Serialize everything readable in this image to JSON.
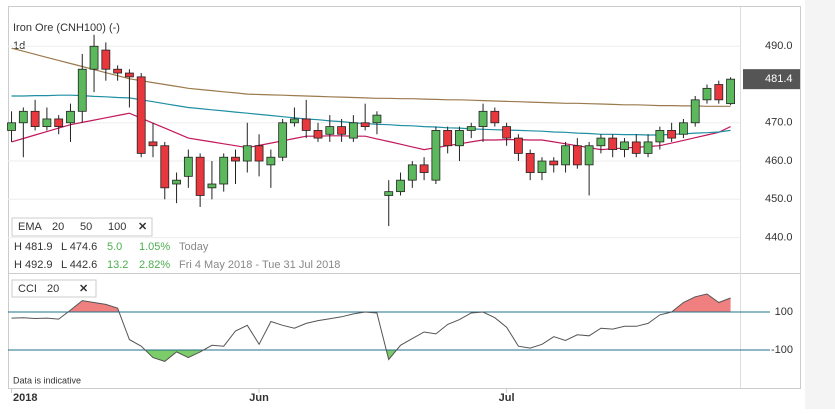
{
  "chart_data": {
    "type": "candlestick",
    "title": "Iron Ore (CNH100) (-)",
    "interval": "1d",
    "xlim": [
      -0.3,
      61.8
    ],
    "xticks": [
      {
        "value": 0,
        "label": "2018"
      },
      {
        "value": 21,
        "label": "Jun"
      },
      {
        "value": 42,
        "label": "Jul"
      }
    ],
    "ylim": [
      431,
      500
    ],
    "yticks": [
      {
        "value": 440,
        "label": "440.0"
      },
      {
        "value": 450,
        "label": "450.0"
      },
      {
        "value": 460,
        "label": "460.0"
      },
      {
        "value": 470,
        "label": "470.0"
      },
      {
        "value": 490,
        "label": "490.0"
      }
    ],
    "grid": true,
    "up_color": "#5cb85c",
    "down_color": "#e8383d",
    "ohlc": {
      "open": [
        468,
        470,
        473,
        469,
        471,
        470,
        473,
        484,
        489,
        484,
        483,
        482,
        465,
        464,
        454,
        456,
        461,
        453,
        454,
        461,
        460,
        464,
        459,
        461,
        470,
        471,
        468,
        467,
        469,
        466,
        470,
        470,
        451,
        452,
        455,
        459,
        455,
        468,
        464,
        468,
        469,
        473,
        469,
        466,
        462,
        457,
        460,
        459,
        464,
        459,
        464,
        466,
        463,
        465,
        462,
        465,
        468,
        467,
        470,
        476,
        480,
        475
      ],
      "high": [
        473,
        474,
        476,
        474,
        472,
        475,
        488,
        493,
        491,
        485,
        484,
        483,
        470,
        465,
        457,
        463,
        462,
        460,
        462,
        463,
        470,
        467,
        463,
        471,
        474,
        476,
        470,
        472,
        471,
        472,
        475,
        473,
        455,
        457,
        460,
        461,
        469,
        469,
        469,
        470,
        475,
        474,
        470,
        467,
        463,
        461,
        461,
        465,
        466,
        465,
        467,
        467,
        466,
        467,
        467,
        469,
        470,
        471,
        477,
        480,
        481,
        481.9
      ],
      "low": [
        465,
        461,
        468,
        468,
        467,
        465,
        470,
        478,
        481,
        481,
        474,
        461,
        461,
        450,
        449,
        453,
        448,
        450,
        452,
        454,
        457,
        456,
        453,
        460,
        469,
        466,
        465,
        465,
        465,
        465,
        468,
        467,
        443,
        451,
        453,
        455,
        454,
        462,
        460,
        466,
        465,
        469,
        464,
        460,
        455,
        455,
        457,
        457,
        458,
        451,
        462,
        461,
        461,
        461,
        461,
        463,
        465,
        466,
        469,
        475,
        475,
        474.6
      ],
      "close": [
        470,
        473,
        469,
        471,
        469,
        473,
        484,
        490,
        484,
        483,
        482,
        462,
        464,
        453,
        455,
        461,
        451,
        454,
        461,
        460,
        464,
        460,
        461,
        470,
        471,
        468,
        466,
        469,
        467,
        470,
        469,
        472,
        452,
        455,
        459,
        457,
        468,
        464,
        468,
        469,
        473,
        470,
        466,
        462,
        457,
        460,
        459,
        464,
        459,
        464,
        466,
        463,
        465,
        462,
        465,
        468,
        466,
        470,
        476,
        479,
        476,
        481.4
      ]
    },
    "last_label": "481.4",
    "series": [
      {
        "name": "20",
        "color": "#c2185b",
        "values": [
          465,
          465.9,
          466.8,
          467.7,
          468.6,
          469.5,
          470.1,
          470.7,
          471.3,
          471.9,
          472.5,
          471.2,
          469.9,
          468.6,
          467.3,
          466.0,
          465.5,
          465.0,
          464.5,
          464.0,
          463.5,
          464.1,
          464.7,
          465.3,
          465.9,
          466.5,
          466.5,
          466.6,
          466.6,
          466.5,
          466.5,
          465.8,
          465.1,
          464.4,
          463.7,
          463.0,
          463.5,
          464.0,
          464.5,
          465.0,
          465.5,
          465.5,
          465.6,
          465.6,
          465.5,
          465.5,
          465.0,
          464.5,
          464.0,
          463.5,
          463.0,
          463.2,
          463.4,
          463.6,
          463.8,
          464.0,
          464.7,
          465.4,
          466.1,
          466.8,
          467.5,
          469.0
        ]
      },
      {
        "name": "50",
        "color": "#1f8fa3",
        "values": [
          477,
          477.0,
          477.1,
          477.1,
          477.2,
          477.2,
          477.1,
          476.9,
          476.8,
          476.6,
          476.5,
          476.0,
          475.5,
          475.0,
          474.5,
          474.0,
          473.7,
          473.4,
          473.1,
          472.8,
          472.5,
          472.2,
          471.9,
          471.6,
          471.3,
          471.0,
          470.8,
          470.5,
          470.3,
          470.0,
          469.8,
          469.6,
          469.5,
          469.3,
          469.2,
          469.0,
          468.9,
          468.7,
          468.6,
          468.4,
          468.3,
          468.2,
          468.1,
          468.0,
          467.9,
          467.8,
          467.6,
          467.5,
          467.3,
          467.2,
          467.0,
          467.0,
          466.9,
          466.9,
          466.8,
          466.8,
          467.0,
          467.1,
          467.3,
          467.4,
          467.6,
          468.0
        ]
      },
      {
        "name": "100",
        "color": "#9c7a4e",
        "values": [
          489.5,
          488.7,
          487.9,
          487.1,
          486.3,
          485.5,
          484.7,
          483.9,
          483.1,
          482.3,
          481.5,
          481.0,
          480.5,
          480.0,
          479.5,
          479.0,
          478.7,
          478.4,
          478.1,
          477.8,
          477.5,
          477.4,
          477.3,
          477.2,
          477.1,
          477.0,
          476.9,
          476.8,
          476.7,
          476.6,
          476.5,
          476.4,
          476.4,
          476.3,
          476.3,
          476.2,
          476.1,
          476.0,
          476.0,
          475.9,
          475.8,
          475.7,
          475.6,
          475.5,
          475.4,
          475.3,
          475.2,
          475.1,
          475.1,
          475.0,
          474.9,
          474.8,
          474.7,
          474.7,
          474.6,
          474.5,
          474.5,
          474.4,
          474.4,
          474.3,
          474.3,
          474.3
        ]
      }
    ],
    "ema_legend": "EMA",
    "info": [
      [
        "H 481.9",
        "L 474.6",
        "5.0",
        "1.05%",
        "Today"
      ],
      [
        "H 492.9",
        "L 442.6",
        "13.2",
        "2.82%",
        "Fri 4 May 2018 - Tue 31 Jul 2018"
      ]
    ],
    "cci": {
      "name": "CCI",
      "period": "20",
      "color": "#555555",
      "above_color": "#f08080",
      "below_color": "#7ccd6a",
      "ylim": [
        -300,
        295
      ],
      "yticks": [
        100,
        -100
      ],
      "values": [
        68,
        70,
        66,
        68,
        63,
        110,
        160,
        150,
        140,
        120,
        -45,
        -80,
        -140,
        -160,
        -110,
        -140,
        -110,
        -75,
        -80,
        0,
        30,
        -70,
        50,
        30,
        15,
        40,
        55,
        65,
        75,
        90,
        100,
        95,
        -150,
        -75,
        -40,
        -5,
        -15,
        35,
        60,
        95,
        100,
        70,
        20,
        -80,
        -90,
        -70,
        -30,
        -50,
        -20,
        -25,
        15,
        10,
        25,
        25,
        40,
        85,
        100,
        150,
        180,
        195,
        150,
        174
      ]
    },
    "note": "Data is indicative"
  }
}
